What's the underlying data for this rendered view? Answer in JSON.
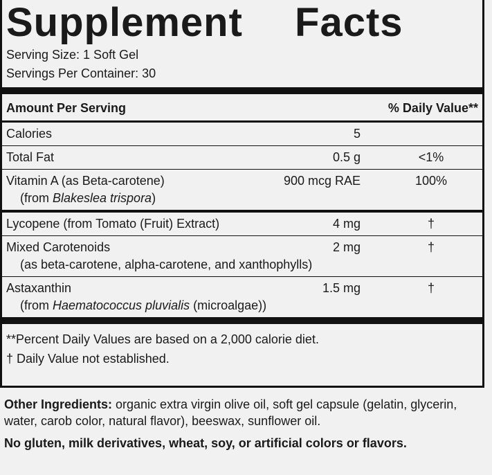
{
  "header": {
    "title": "Supplement Facts"
  },
  "serving": {
    "size": "Serving Size: 1 Soft Gel",
    "per_container": "Servings Per Container: 30"
  },
  "table": {
    "header": [
      "Amount Per Serving",
      "% Daily Value**"
    ],
    "rows": [
      {
        "name": "Calories",
        "amount": "5"
      },
      {
        "name": "Total Fat",
        "amount": "0.5 g",
        "dv": "<1%"
      },
      {
        "name": "Vitamin A (as Beta-carotene)",
        "note": {
          "prefix": "(from ",
          "italic": "Blakeslea trispora",
          "suffix": ")"
        },
        "amount": "900 mcg RAE",
        "dv": "100%"
      },
      {
        "name": "Lycopene (from Tomato (Fruit) Extract)",
        "amount": "4 mg",
        "dv": "†"
      },
      {
        "name": "Mixed Carotenoids",
        "note": {
          "prefix": "(as beta-carotene, alpha-carotene, and xanthophylls)"
        },
        "amount": "2 mg",
        "dv": "†"
      },
      {
        "name": "Astaxanthin",
        "note": {
          "prefix": "(from ",
          "italic": "Haematococcus pluvialis",
          "suffix": " (microalgae))"
        },
        "amount": "1.5 mg",
        "dv": "†"
      }
    ]
  },
  "footnotes": [
    "**Percent Daily Values are based on a 2,000 calorie diet.",
    "† Daily Value not established."
  ],
  "ingredients": {
    "label": "Other Ingredients:",
    "text": " organic extra virgin olive oil, soft gel capsule (gelatin, glycerin, water, carob color, natural flavor), beeswax, sunflower oil."
  },
  "allergen": "No gluten, milk derivatives, wheat, soy, or artificial colors or flavors."
}
